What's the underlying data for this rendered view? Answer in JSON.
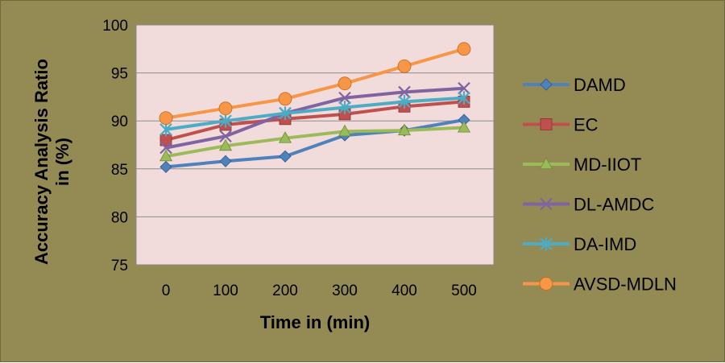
{
  "chart_data": {
    "type": "line",
    "title": "",
    "xlabel": "Time in (min)",
    "ylabel": "Accuracy Analysis Ratio in (%)",
    "ylabel_lines": [
      "Accuracy Analysis Ratio",
      "in (%)"
    ],
    "ylim": [
      75,
      100
    ],
    "yticks": [
      75,
      80,
      85,
      90,
      95,
      100
    ],
    "categories": [
      "0",
      "100",
      "200",
      "300",
      "400",
      "500"
    ],
    "grid": true,
    "legend_position": "right",
    "plot_background": "#f2dcdb",
    "frame_background": "#948a54",
    "series": [
      {
        "name": "DAMD",
        "values": [
          85.2,
          85.8,
          86.3,
          88.5,
          89.0,
          90.1
        ],
        "color": "#4f81bd",
        "marker": "diamond"
      },
      {
        "name": "EC",
        "values": [
          88.0,
          89.6,
          90.2,
          90.7,
          91.5,
          92.0
        ],
        "color": "#c0504d",
        "marker": "square"
      },
      {
        "name": "MD-IIOT",
        "values": [
          86.3,
          87.4,
          88.2,
          88.9,
          89.0,
          89.3
        ],
        "color": "#9bbb59",
        "marker": "triangle"
      },
      {
        "name": "DL-AMDC",
        "values": [
          87.2,
          88.4,
          90.8,
          92.4,
          93.0,
          93.4
        ],
        "color": "#8064a2",
        "marker": "x"
      },
      {
        "name": "DA-IMD",
        "values": [
          89.1,
          90.0,
          90.8,
          91.4,
          92.0,
          92.4
        ],
        "color": "#4bacc6",
        "marker": "star"
      },
      {
        "name": "AVSD-MDLN",
        "values": [
          90.3,
          91.3,
          92.3,
          93.9,
          95.7,
          97.5
        ],
        "color": "#f79646",
        "marker": "circle"
      }
    ]
  }
}
